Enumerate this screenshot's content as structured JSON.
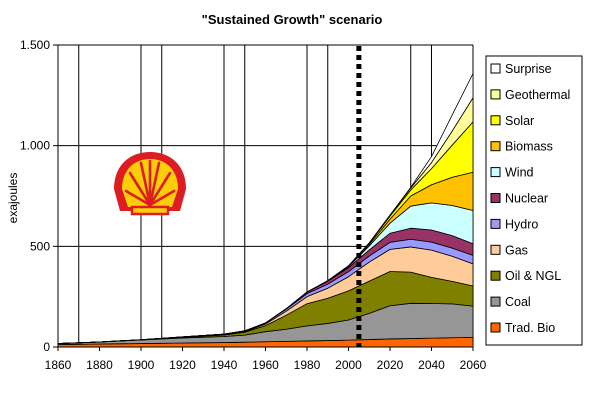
{
  "chart_data": {
    "type": "area",
    "stacked": true,
    "title": "\"Sustained Growth\" scenario",
    "ylabel": "exajoules",
    "xlabel": "",
    "xlim": [
      1860,
      2060
    ],
    "ylim": [
      0,
      1500
    ],
    "x_ticks": [
      1860,
      1880,
      1900,
      1920,
      1940,
      1960,
      1980,
      2000,
      2020,
      2040,
      2060
    ],
    "y_ticks": [
      {
        "value": 0,
        "label": "0"
      },
      {
        "value": 500,
        "label": "500"
      },
      {
        "value": 1000,
        "label": "1.000"
      },
      {
        "value": 1500,
        "label": "1.500"
      }
    ],
    "vertical_gridlines": [
      1860,
      1870,
      1900,
      1910,
      1940,
      1950,
      1980,
      1990,
      2030,
      2040,
      2060
    ],
    "horizontal_gridlines": [
      500,
      1000,
      1500
    ],
    "marker_line": {
      "x": 2005,
      "style": "dashed"
    },
    "legend_position": "right",
    "x": [
      1860,
      1880,
      1900,
      1920,
      1940,
      1950,
      1960,
      1970,
      1980,
      1990,
      2000,
      2010,
      2020,
      2030,
      2040,
      2050,
      2060
    ],
    "series": [
      {
        "name": "Trad. Bio",
        "color": "#ff6600",
        "values": [
          12,
          15,
          17,
          20,
          22,
          24,
          26,
          28,
          30,
          32,
          34,
          37,
          40,
          42,
          44,
          46,
          48
        ]
      },
      {
        "name": "Coal",
        "color": "#969696",
        "values": [
          5,
          10,
          18,
          25,
          30,
          35,
          50,
          60,
          75,
          85,
          100,
          130,
          165,
          175,
          172,
          168,
          155
        ]
      },
      {
        "name": "Oil & NGL",
        "color": "#808000",
        "values": [
          0,
          0,
          1,
          3,
          8,
          15,
          30,
          70,
          110,
          125,
          145,
          160,
          170,
          155,
          130,
          112,
          100
        ]
      },
      {
        "name": "Gas",
        "color": "#ffcc99",
        "values": [
          0,
          0,
          0,
          1,
          2,
          3,
          8,
          20,
          35,
          50,
          70,
          95,
          110,
          125,
          135,
          125,
          110
        ]
      },
      {
        "name": "Hydro",
        "color": "#9999ff",
        "values": [
          0,
          0,
          0,
          1,
          2,
          3,
          5,
          10,
          15,
          20,
          25,
          30,
          35,
          38,
          40,
          40,
          42
        ]
      },
      {
        "name": "Nuclear",
        "color": "#993366",
        "values": [
          0,
          0,
          0,
          0,
          0,
          0,
          0,
          2,
          8,
          15,
          20,
          30,
          45,
          55,
          60,
          62,
          58
        ]
      },
      {
        "name": "Wind",
        "color": "#ccffff",
        "values": [
          0,
          0,
          0,
          0,
          0,
          0,
          0,
          0,
          0,
          1,
          5,
          20,
          50,
          110,
          135,
          150,
          165
        ]
      },
      {
        "name": "Biomass",
        "color": "#ffc000",
        "values": [
          0,
          0,
          0,
          0,
          0,
          0,
          0,
          0,
          0,
          1,
          3,
          8,
          20,
          50,
          90,
          140,
          190
        ]
      },
      {
        "name": "Solar",
        "color": "#ffff00",
        "values": [
          0,
          0,
          0,
          0,
          0,
          0,
          0,
          0,
          0,
          0,
          1,
          5,
          15,
          30,
          80,
          160,
          250
        ]
      },
      {
        "name": "Geothermal",
        "color": "#ffff99",
        "values": [
          0,
          0,
          0,
          0,
          0,
          0,
          0,
          0,
          0,
          0,
          0,
          2,
          5,
          10,
          30,
          70,
          120
        ]
      },
      {
        "name": "Surprise",
        "color": "#ffffff",
        "values": [
          0,
          0,
          0,
          0,
          0,
          0,
          0,
          0,
          0,
          0,
          0,
          0,
          0,
          3,
          30,
          80,
          120
        ]
      }
    ],
    "logo": {
      "name": "shell-logo-icon",
      "primary": "#dd1d21",
      "secondary": "#fbce07"
    }
  }
}
